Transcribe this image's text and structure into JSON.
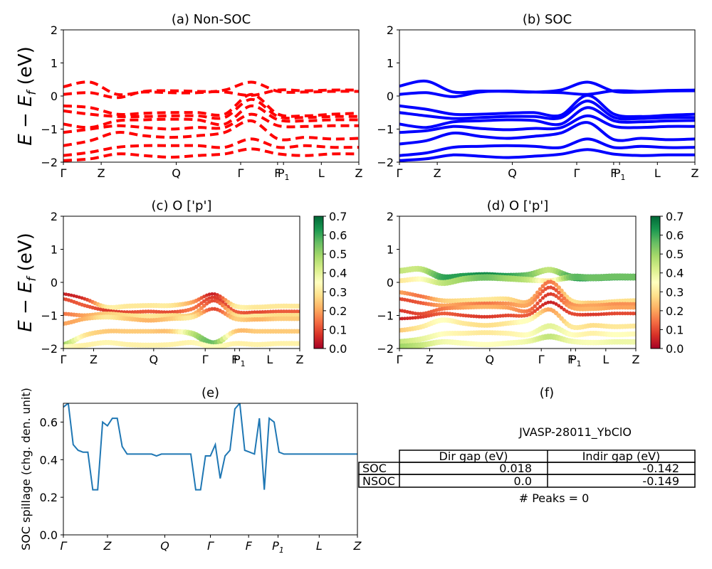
{
  "figure": {
    "ylabel_text": "E − E",
    "ylabel_sub": "f",
    "ylabel_unit": " (eV)",
    "kpath": [
      "Γ",
      "Z",
      "Q",
      "Γ",
      "F",
      "P1",
      "L",
      "Z"
    ],
    "colors": {
      "nsoc": "#ff0000",
      "soc": "#0000ff",
      "spillage": "#1f77b4",
      "frame": "#000000"
    }
  },
  "chart_data": [
    {
      "id": "a",
      "type": "line",
      "title": "(a) Non-SOC",
      "ylim": [
        -2,
        2
      ],
      "yticks": [
        "2",
        "1",
        "0",
        "−1",
        "−2"
      ],
      "xticks": [
        "Γ",
        "Z",
        "Q",
        "Γ",
        "F",
        "P1",
        "L",
        "Z"
      ],
      "line_style": "dashed",
      "series": [
        {
          "values": [
            0.28,
            0.42,
            0.05,
            0.12,
            0.1,
            0.1,
            0.18,
            0.42,
            0.14,
            0.12,
            0.14,
            0.14
          ]
        },
        {
          "values": [
            0.05,
            0.1,
            -0.05,
            0.14,
            0.16,
            0.14,
            0.12,
            0.02,
            0.18,
            0.16,
            0.18,
            0.18
          ]
        },
        {
          "values": [
            -0.3,
            -0.35,
            -0.55,
            -0.52,
            -0.5,
            -0.5,
            -0.55,
            0.05,
            -0.55,
            -0.6,
            -0.55,
            -0.52
          ]
        },
        {
          "values": [
            -0.45,
            -0.55,
            -0.62,
            -0.62,
            -0.6,
            -0.6,
            -0.65,
            -0.1,
            -0.62,
            -0.65,
            -0.62,
            -0.62
          ]
        },
        {
          "values": [
            -0.85,
            -0.95,
            -0.75,
            -0.72,
            -0.7,
            -0.72,
            -0.85,
            -0.3,
            -0.72,
            -0.75,
            -0.72,
            -0.72
          ]
        },
        {
          "values": [
            -1.1,
            -1.0,
            -0.9,
            -0.95,
            -1.0,
            -0.95,
            -0.95,
            -0.55,
            -0.9,
            -0.92,
            -0.9,
            -0.9
          ]
        },
        {
          "values": [
            -1.5,
            -1.35,
            -1.1,
            -1.2,
            -1.25,
            -1.2,
            -1.1,
            -0.75,
            -1.3,
            -1.25,
            -1.3,
            -1.28
          ]
        },
        {
          "values": [
            -1.8,
            -1.7,
            -1.55,
            -1.5,
            -1.5,
            -1.5,
            -1.55,
            -1.3,
            -1.55,
            -1.5,
            -1.55,
            -1.55
          ]
        },
        {
          "values": [
            -1.95,
            -1.9,
            -1.75,
            -1.8,
            -1.85,
            -1.8,
            -1.75,
            -1.6,
            -1.75,
            -1.8,
            -1.75,
            -1.75
          ]
        }
      ]
    },
    {
      "id": "b",
      "type": "line",
      "title": "(b) SOC",
      "ylim": [
        -2,
        2
      ],
      "yticks": [
        "2",
        "1",
        "0",
        "−1",
        "−2"
      ],
      "xticks": [
        "Γ",
        "Z",
        "Q",
        "Γ",
        "F",
        "P1",
        "L",
        "Z"
      ],
      "line_style": "solid",
      "series": [
        {
          "values": [
            0.3,
            0.45,
            0.12,
            0.15,
            0.14,
            0.12,
            0.18,
            0.42,
            0.14,
            0.12,
            0.15,
            0.16
          ]
        },
        {
          "values": [
            0.05,
            0.1,
            -0.02,
            0.12,
            0.15,
            0.12,
            0.1,
            0.05,
            0.16,
            0.14,
            0.17,
            0.18
          ]
        },
        {
          "values": [
            -0.3,
            -0.4,
            -0.55,
            -0.55,
            -0.52,
            -0.5,
            -0.58,
            0.02,
            -0.55,
            -0.62,
            -0.58,
            -0.55
          ]
        },
        {
          "values": [
            -0.5,
            -0.6,
            -0.68,
            -0.65,
            -0.62,
            -0.62,
            -0.66,
            -0.15,
            -0.65,
            -0.68,
            -0.65,
            -0.65
          ]
        },
        {
          "values": [
            -0.85,
            -0.95,
            -0.78,
            -0.75,
            -0.72,
            -0.74,
            -0.85,
            -0.35,
            -0.75,
            -0.78,
            -0.75,
            -0.74
          ]
        },
        {
          "values": [
            -1.1,
            -1.05,
            -0.92,
            -0.98,
            -1.02,
            -0.98,
            -0.96,
            -0.6,
            -0.92,
            -0.95,
            -0.92,
            -0.92
          ]
        },
        {
          "values": [
            -1.45,
            -1.35,
            -1.12,
            -1.22,
            -1.28,
            -1.22,
            -1.12,
            -0.8,
            -1.32,
            -1.28,
            -1.32,
            -1.3
          ]
        },
        {
          "values": [
            -1.8,
            -1.72,
            -1.55,
            -1.52,
            -1.5,
            -1.52,
            -1.56,
            -1.3,
            -1.56,
            -1.52,
            -1.56,
            -1.55
          ]
        },
        {
          "values": [
            -1.95,
            -1.9,
            -1.78,
            -1.82,
            -1.86,
            -1.82,
            -1.76,
            -1.62,
            -1.76,
            -1.8,
            -1.78,
            -1.78
          ]
        }
      ]
    },
    {
      "id": "c",
      "type": "scatter",
      "title": "(c)  O ['p']",
      "ylim": [
        -2,
        2
      ],
      "yticks": [
        "2",
        "1",
        "0",
        "−1",
        "−2"
      ],
      "xticks": [
        "Γ",
        "Z",
        "Q",
        "Γ",
        "F",
        "P1",
        "L",
        "Z"
      ],
      "colorbar": {
        "min": 0.0,
        "max": 0.7,
        "ticks": [
          "0.7",
          "0.6",
          "0.5",
          "0.4",
          "0.3",
          "0.2",
          "0.1",
          "0.0"
        ]
      },
      "series": [
        {
          "values": [
            -0.35,
            -0.5,
            -0.75,
            -0.72,
            -0.7,
            -0.7,
            -0.6,
            -0.35,
            -0.72,
            -0.75,
            -0.72,
            -0.72
          ],
          "weights": [
            0.05,
            0.08,
            0.3,
            0.3,
            0.3,
            0.3,
            0.2,
            0.05,
            0.3,
            0.3,
            0.3,
            0.3
          ]
        },
        {
          "values": [
            -0.5,
            -0.7,
            -0.85,
            -0.9,
            -0.88,
            -0.9,
            -0.8,
            -0.45,
            -0.88,
            -0.9,
            -0.88,
            -0.88
          ],
          "weights": [
            0.1,
            0.12,
            0.08,
            0.1,
            0.12,
            0.1,
            0.15,
            0.08,
            0.12,
            0.1,
            0.12,
            0.12
          ]
        },
        {
          "values": [
            -0.95,
            -1.0,
            -0.95,
            -1.0,
            -1.02,
            -1.0,
            -0.98,
            -0.55,
            -1.0,
            -1.02,
            -1.0,
            -1.0
          ],
          "weights": [
            0.15,
            0.2,
            0.25,
            0.28,
            0.3,
            0.28,
            0.25,
            0.1,
            0.28,
            0.3,
            0.28,
            0.28
          ]
        },
        {
          "values": [
            -1.25,
            -1.1,
            -1.05,
            -1.1,
            -1.15,
            -1.1,
            -1.05,
            -0.8,
            -1.1,
            -1.12,
            -1.1,
            -1.1
          ],
          "weights": [
            0.2,
            0.22,
            0.3,
            0.25,
            0.22,
            0.25,
            0.3,
            0.1,
            0.25,
            0.22,
            0.25,
            0.25
          ]
        },
        {
          "values": [
            -1.9,
            -1.6,
            -1.48,
            -1.48,
            -1.48,
            -1.48,
            -1.55,
            -1.85,
            -1.48,
            -1.48,
            -1.48,
            -1.48
          ],
          "weights": [
            0.5,
            0.3,
            0.25,
            0.25,
            0.25,
            0.25,
            0.45,
            0.55,
            0.25,
            0.25,
            0.25,
            0.25
          ]
        },
        {
          "values": [
            -1.95,
            -1.9,
            -1.82,
            -1.88,
            -1.9,
            -1.88,
            -1.82,
            -1.95,
            -1.85,
            -1.88,
            -1.85,
            -1.85
          ],
          "weights": [
            0.35,
            0.32,
            0.33,
            0.32,
            0.32,
            0.32,
            0.33,
            0.35,
            0.32,
            0.32,
            0.32,
            0.32
          ]
        }
      ]
    },
    {
      "id": "d",
      "type": "scatter",
      "title": "(d) O ['p']",
      "ylim": [
        -2,
        2
      ],
      "yticks": [
        "2",
        "1",
        "0",
        "−1",
        "−2"
      ],
      "xticks": [
        "Γ",
        "Z",
        "Q",
        "Γ",
        "F",
        "P1",
        "L",
        "Z"
      ],
      "colorbar": {
        "min": 0.0,
        "max": 0.7,
        "ticks": [
          "0.7",
          "0.6",
          "0.5",
          "0.4",
          "0.3",
          "0.2",
          "0.1",
          "0.0"
        ]
      },
      "series": [
        {
          "values": [
            0.35,
            0.4,
            0.15,
            0.18,
            0.2,
            0.18,
            0.22,
            0.38,
            0.16,
            0.14,
            0.16,
            0.16
          ],
          "weights": [
            0.45,
            0.45,
            0.6,
            0.62,
            0.65,
            0.62,
            0.55,
            0.45,
            0.6,
            0.62,
            0.6,
            0.6
          ]
        },
        {
          "values": [
            0.05,
            0.1,
            -0.02,
            0.1,
            0.15,
            0.12,
            0.08,
            0.05,
            0.16,
            0.14,
            0.17,
            0.16
          ],
          "weights": [
            0.3,
            0.35,
            0.45,
            0.5,
            0.55,
            0.5,
            0.45,
            0.3,
            0.55,
            0.55,
            0.55,
            0.55
          ]
        },
        {
          "values": [
            -0.3,
            -0.42,
            -0.55,
            -0.55,
            -0.52,
            -0.5,
            -0.58,
            0.02,
            -0.55,
            -0.62,
            -0.58,
            -0.55
          ],
          "weights": [
            0.2,
            0.15,
            0.25,
            0.28,
            0.3,
            0.28,
            0.22,
            0.15,
            0.28,
            0.25,
            0.28,
            0.28
          ]
        },
        {
          "values": [
            -0.5,
            -0.62,
            -0.7,
            -0.66,
            -0.64,
            -0.64,
            -0.68,
            -0.15,
            -0.66,
            -0.7,
            -0.66,
            -0.66
          ],
          "weights": [
            0.1,
            0.12,
            0.2,
            0.18,
            0.15,
            0.18,
            0.2,
            0.1,
            0.18,
            0.2,
            0.18,
            0.18
          ]
        },
        {
          "values": [
            -0.85,
            -0.95,
            -0.8,
            -0.76,
            -0.74,
            -0.76,
            -0.86,
            -0.35,
            -0.76,
            -0.8,
            -0.76,
            -0.76
          ],
          "weights": [
            0.08,
            0.1,
            0.15,
            0.2,
            0.22,
            0.2,
            0.15,
            0.08,
            0.2,
            0.22,
            0.2,
            0.2
          ]
        },
        {
          "values": [
            -1.1,
            -1.05,
            -0.94,
            -1.0,
            -1.04,
            -1.0,
            -0.98,
            -0.6,
            -0.94,
            -0.97,
            -0.94,
            -0.94
          ],
          "weights": [
            0.05,
            0.08,
            0.12,
            0.1,
            0.08,
            0.1,
            0.12,
            0.05,
            0.1,
            0.08,
            0.1,
            0.1
          ]
        },
        {
          "values": [
            -1.45,
            -1.35,
            -1.14,
            -1.24,
            -1.3,
            -1.24,
            -1.14,
            -0.82,
            -1.34,
            -1.3,
            -1.34,
            -1.32
          ],
          "weights": [
            0.25,
            0.3,
            0.35,
            0.3,
            0.28,
            0.3,
            0.35,
            0.2,
            0.3,
            0.28,
            0.3,
            0.3
          ]
        },
        {
          "values": [
            -1.8,
            -1.72,
            -1.56,
            -1.54,
            -1.52,
            -1.54,
            -1.58,
            -1.32,
            -1.58,
            -1.54,
            -1.58,
            -1.56
          ],
          "weights": [
            0.45,
            0.4,
            0.35,
            0.32,
            0.3,
            0.32,
            0.35,
            0.4,
            0.35,
            0.32,
            0.35,
            0.34
          ]
        },
        {
          "values": [
            -1.95,
            -1.9,
            -1.8,
            -1.84,
            -1.88,
            -1.84,
            -1.78,
            -1.64,
            -1.78,
            -1.82,
            -1.8,
            -1.8
          ],
          "weights": [
            0.5,
            0.45,
            0.38,
            0.36,
            0.35,
            0.36,
            0.38,
            0.45,
            0.38,
            0.36,
            0.38,
            0.38
          ]
        }
      ]
    },
    {
      "id": "e",
      "type": "line",
      "title": "(e)",
      "ylabel": "SOC spillage (chg. den. unit)",
      "ylim": [
        0.0,
        0.7
      ],
      "yticks": [
        "0.6",
        "0.4",
        "0.2",
        "0.0"
      ],
      "ytick_values": [
        0.6,
        0.4,
        0.2,
        0.0
      ],
      "xticks": [
        "Γ",
        "Z",
        "Q",
        "Γ",
        "F",
        "P1",
        "L",
        "Z"
      ],
      "x": [
        0,
        1,
        2,
        3,
        4,
        5,
        6,
        7,
        8,
        9,
        10,
        11,
        12,
        13,
        14,
        15,
        16,
        17,
        18,
        19,
        20,
        21,
        22,
        23,
        24,
        25,
        26,
        27,
        28,
        29,
        30,
        31,
        32,
        33,
        34,
        35,
        36,
        37,
        38,
        39,
        40,
        41,
        42,
        43,
        44,
        45,
        46,
        47,
        48,
        49,
        50,
        51,
        52,
        53,
        54,
        55,
        56,
        57,
        58,
        59,
        60
      ],
      "values": [
        0.68,
        0.7,
        0.48,
        0.45,
        0.44,
        0.44,
        0.24,
        0.24,
        0.6,
        0.58,
        0.62,
        0.62,
        0.47,
        0.43,
        0.43,
        0.43,
        0.43,
        0.43,
        0.43,
        0.42,
        0.43,
        0.43,
        0.43,
        0.43,
        0.43,
        0.43,
        0.43,
        0.24,
        0.24,
        0.42,
        0.42,
        0.48,
        0.3,
        0.42,
        0.45,
        0.67,
        0.7,
        0.45,
        0.44,
        0.43,
        0.62,
        0.24,
        0.62,
        0.6,
        0.44,
        0.43,
        0.43,
        0.43,
        0.43,
        0.43,
        0.43,
        0.43,
        0.43,
        0.43,
        0.43,
        0.43,
        0.43,
        0.43,
        0.43,
        0.43,
        0.43
      ]
    },
    {
      "id": "f",
      "type": "table",
      "title": "(f)",
      "caption": "JVASP-28011_YbClO",
      "columns": [
        "",
        "Dir gap (eV)",
        "Indir gap (eV)"
      ],
      "rows": [
        [
          "SOC",
          "0.018",
          "-0.142"
        ],
        [
          "NSOC",
          "0.0",
          "-0.149"
        ]
      ],
      "note": "# Peaks = 0"
    }
  ]
}
